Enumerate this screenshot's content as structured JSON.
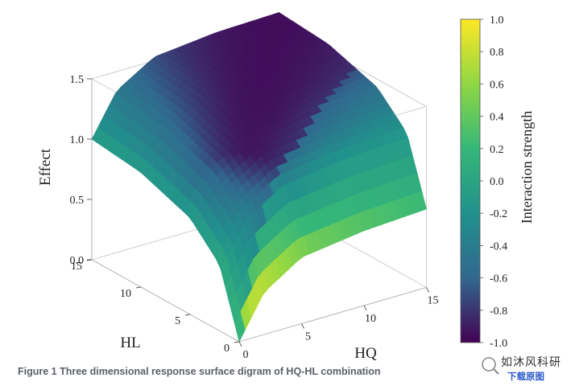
{
  "chart_data": {
    "type": "surface3d",
    "title": "",
    "xlabel": "HQ",
    "ylabel": "HL",
    "zlabel": "Effect",
    "colorbar_label": "Interaction strength",
    "x_ticks": [
      "0",
      "5",
      "10",
      "15"
    ],
    "y_ticks": [
      "0",
      "5",
      "10",
      "15"
    ],
    "z_ticks": [
      "0.0",
      "0.5",
      "1.0",
      "1.5"
    ],
    "colorbar_ticks": [
      "1.0",
      "0.8",
      "0.6",
      "0.4",
      "0.2",
      "0.0",
      "-0.2",
      "-0.4",
      "-0.6",
      "-0.8",
      "-1.0"
    ],
    "xlim": [
      0,
      15
    ],
    "ylim": [
      0,
      15
    ],
    "zlim": [
      0,
      1.5
    ],
    "clim": [
      -1.0,
      1.0
    ],
    "colormap": [
      "#440154",
      "#31688e",
      "#21918c",
      "#35b779",
      "#90d743",
      "#fde725"
    ],
    "surface_profile": {
      "hl_edge_at_hq0": {
        "hl": [
          0,
          2,
          5,
          10,
          15
        ],
        "effect": [
          0.0,
          0.55,
          0.8,
          0.95,
          1.0
        ]
      },
      "hq_edge_at_hl0": {
        "hq": [
          0,
          2,
          5,
          10,
          15
        ],
        "effect": [
          0.0,
          0.35,
          0.55,
          0.62,
          0.65
        ]
      },
      "max_corner": {
        "hq": 15,
        "hl": 15,
        "effect": 1.6
      }
    }
  },
  "caption": "Figure 1 Three dimensional response surface digram of HQ-HL combination",
  "watermark": {
    "title": "如沐风科研",
    "link": "下载原图"
  }
}
